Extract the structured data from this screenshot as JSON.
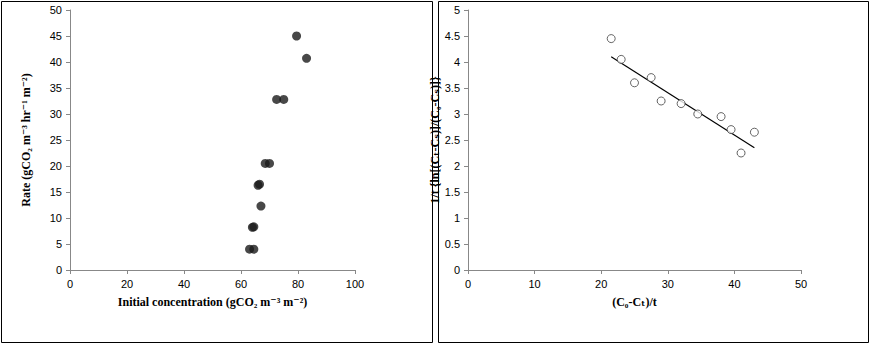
{
  "chart_data": [
    {
      "type": "scatter",
      "x_label": "Initial concentration (gCO₂ m⁻³ m⁻²)",
      "y_label": "Rate (gCO₂ m⁻³ hr⁻¹ m⁻²)",
      "xlim": [
        0,
        100
      ],
      "xticks": [
        0,
        20,
        40,
        60,
        80,
        100
      ],
      "ylim": [
        0,
        50
      ],
      "yticks": [
        0,
        5,
        10,
        15,
        20,
        25,
        30,
        35,
        40,
        45,
        50
      ],
      "grid": false,
      "series": [
        {
          "type": "scatter",
          "marker": "circle",
          "color": "#1a1a1a",
          "x": [
            63,
            64.5,
            64,
            64.5,
            66,
            66.5,
            67,
            68.5,
            70,
            72.5,
            75,
            79.5,
            83
          ],
          "values": [
            4,
            4,
            8.2,
            8.3,
            16.3,
            16.5,
            12.3,
            20.5,
            20.5,
            32.8,
            32.8,
            45,
            40.7
          ]
        }
      ]
    },
    {
      "type": "scatter",
      "x_label": "(C₀-Cₜ)/t",
      "y_label": "1/t {ln[(Cₜ-Cₛ)]/(C₀-Cₛ)]}",
      "xlim": [
        0,
        50
      ],
      "xticks": [
        0,
        10,
        20,
        30,
        40,
        50
      ],
      "ylim": [
        0,
        5
      ],
      "yticks": [
        0,
        0.5,
        1,
        1.5,
        2,
        2.5,
        3,
        3.5,
        4,
        4.5,
        5
      ],
      "grid": false,
      "series": [
        {
          "type": "scatter",
          "marker": "open_circle",
          "color": "#404040",
          "x": [
            21.5,
            23,
            25,
            27.5,
            29,
            32,
            34.5,
            38,
            39.5,
            41,
            43
          ],
          "values": [
            4.45,
            4.05,
            3.6,
            3.7,
            3.25,
            3.2,
            3.0,
            2.95,
            2.7,
            2.25,
            2.65
          ]
        },
        {
          "type": "line",
          "line_style": "solid",
          "color": "#000000",
          "x": [
            21.5,
            43
          ],
          "values": [
            4.1,
            2.35
          ]
        }
      ]
    }
  ]
}
